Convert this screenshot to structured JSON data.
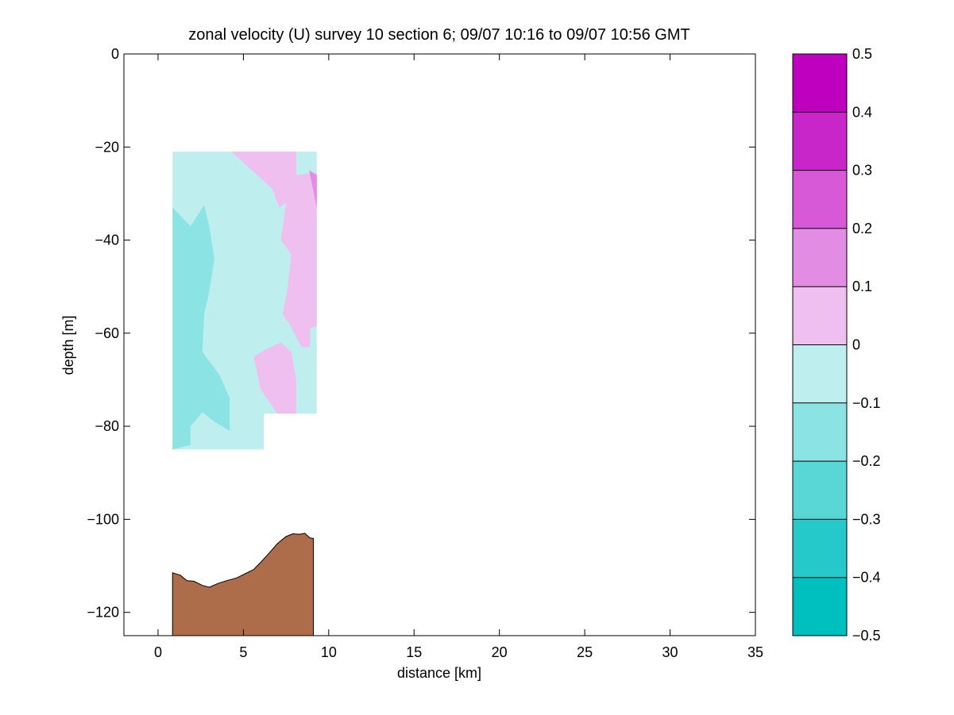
{
  "chart_data": {
    "type": "filled-contour",
    "title": "zonal velocity (U) survey 10 section 6; 09/07 10:16 to 09/07 10:56 GMT",
    "xlabel": "distance [km]",
    "ylabel": "depth [m]",
    "xlim": [
      -2,
      35
    ],
    "ylim": [
      -125,
      0
    ],
    "xticks": [
      0,
      5,
      10,
      15,
      20,
      25,
      30,
      35
    ],
    "yticks": [
      0,
      -20,
      -40,
      -60,
      -80,
      -100,
      -120
    ],
    "xtick_labels": [
      "0",
      "5",
      "10",
      "15",
      "20",
      "25",
      "30",
      "35"
    ],
    "ytick_labels": [
      "0",
      "−20",
      "−40",
      "−60",
      "−80",
      "−100",
      "−120"
    ],
    "colorbar": {
      "levels": [
        -0.5,
        -0.4,
        -0.3,
        -0.2,
        -0.1,
        0,
        0.1,
        0.2,
        0.3,
        0.4,
        0.5
      ],
      "labels": [
        "−0.5",
        "−0.4",
        "−0.3",
        "−0.2",
        "−0.1",
        "0",
        "0.1",
        "0.2",
        "0.3",
        "0.4",
        "0.5"
      ],
      "colors": [
        "#00bfbf",
        "#26c9c9",
        "#59d7d7",
        "#8ce3e3",
        "#bfeeee",
        "#efbfef",
        "#e38ce3",
        "#d759d7",
        "#c926c9",
        "#bf00bf"
      ]
    },
    "regions": [
      {
        "name": "data-domain-0-to--0.1",
        "band": [
          -0.1,
          0
        ],
        "color": "#bfeeee",
        "points": [
          [
            0.85,
            -21
          ],
          [
            9.3,
            -21
          ],
          [
            9.3,
            -77.3
          ],
          [
            6.2,
            -77.3
          ],
          [
            6.2,
            -85
          ],
          [
            0.85,
            -85
          ]
        ]
      },
      {
        "name": "band-0.2-to-0.1-a",
        "band": [
          -0.2,
          -0.1
        ],
        "color": "#8ce3e3",
        "points": [
          [
            0.85,
            -33
          ],
          [
            1.9,
            -37
          ],
          [
            2.7,
            -32.5
          ],
          [
            3.0,
            -37
          ],
          [
            3.3,
            -44
          ],
          [
            3.0,
            -51
          ],
          [
            2.7,
            -56
          ],
          [
            2.6,
            -64
          ],
          [
            3.6,
            -69
          ],
          [
            4.2,
            -74
          ],
          [
            4.2,
            -81
          ],
          [
            3.3,
            -79
          ],
          [
            2.6,
            -77
          ],
          [
            1.9,
            -80
          ],
          [
            1.9,
            -84
          ],
          [
            0.85,
            -85
          ]
        ]
      },
      {
        "name": "band-0-to-0.1-a",
        "band": [
          0,
          0.1
        ],
        "color": "#efbfef",
        "points": [
          [
            4.3,
            -21
          ],
          [
            8.1,
            -21
          ],
          [
            8.1,
            -26
          ],
          [
            9.3,
            -25.5
          ],
          [
            9.3,
            -58.5
          ],
          [
            8.9,
            -59
          ],
          [
            8.9,
            -63
          ],
          [
            8.4,
            -63
          ],
          [
            7.7,
            -58
          ],
          [
            7.3,
            -56
          ],
          [
            7.6,
            -50
          ],
          [
            7.8,
            -43
          ],
          [
            7.2,
            -40
          ],
          [
            7.5,
            -32
          ],
          [
            7.1,
            -33
          ],
          [
            6.7,
            -29
          ]
        ]
      },
      {
        "name": "band-0-to-0.1-b",
        "band": [
          0,
          0.1
        ],
        "color": "#efbfef",
        "points": [
          [
            5.6,
            -65
          ],
          [
            6.3,
            -63.5
          ],
          [
            7.2,
            -62
          ],
          [
            7.8,
            -64
          ],
          [
            8.1,
            -70
          ],
          [
            8.1,
            -77.3
          ],
          [
            7.0,
            -77.3
          ],
          [
            6.0,
            -72
          ]
        ]
      },
      {
        "name": "band-0.1-to-0.2-a",
        "band": [
          0.1,
          0.2
        ],
        "color": "#e38ce3",
        "points": [
          [
            8.85,
            -25
          ],
          [
            9.3,
            -26
          ],
          [
            9.3,
            -33
          ]
        ]
      }
    ],
    "bathymetry": {
      "color": "#ad6c4a",
      "points": [
        [
          0.85,
          -111.5
        ],
        [
          1.3,
          -112
        ],
        [
          1.7,
          -113.2
        ],
        [
          2.1,
          -113.3
        ],
        [
          2.6,
          -114.2
        ],
        [
          3.0,
          -114.6
        ],
        [
          3.5,
          -113.8
        ],
        [
          4.0,
          -113.2
        ],
        [
          4.6,
          -112.6
        ],
        [
          5.1,
          -111.7
        ],
        [
          5.6,
          -110.8
        ],
        [
          6.0,
          -109.3
        ],
        [
          6.5,
          -107.3
        ],
        [
          7.0,
          -105.2
        ],
        [
          7.5,
          -103.7
        ],
        [
          7.9,
          -103.1
        ],
        [
          8.3,
          -103.2
        ],
        [
          8.6,
          -103.0
        ],
        [
          8.9,
          -104.0
        ],
        [
          9.1,
          -104.1
        ]
      ]
    }
  }
}
